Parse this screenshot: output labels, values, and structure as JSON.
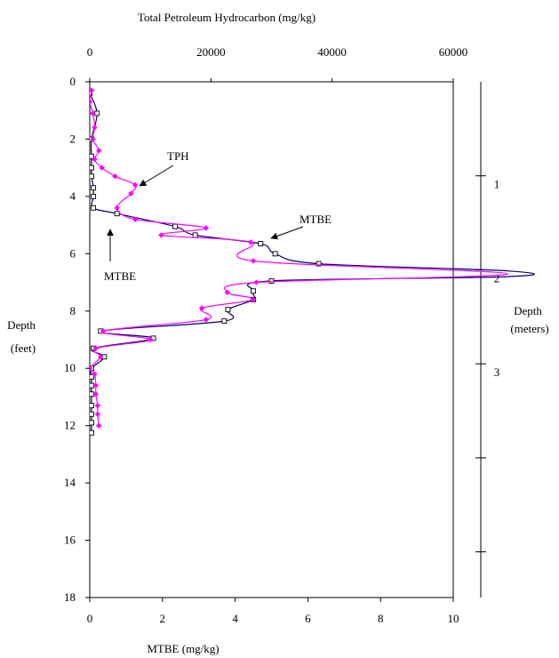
{
  "chart_data": {
    "type": "line",
    "title": "",
    "y_axis": {
      "label": "Depth",
      "unit": "(feet)",
      "range": [
        18,
        0
      ],
      "inverted": true,
      "ticks": [
        0,
        2,
        4,
        6,
        8,
        10,
        12,
        14,
        16,
        18
      ]
    },
    "x_axis_bottom": {
      "label": "MTBE (mg/kg)",
      "range": [
        0,
        10
      ],
      "ticks": [
        0,
        2,
        4,
        6,
        8,
        10
      ]
    },
    "x_axis_top": {
      "label": "Total Petroleum Hydrocarbon (mg/kg)",
      "range": [
        0,
        60000
      ],
      "ticks": [
        "0",
        "20000",
        "40000",
        "60000"
      ],
      "tick_values": [
        0,
        20000,
        40000,
        60000
      ]
    },
    "y_axis_right": {
      "label": "Depth",
      "unit": "(meters)",
      "ticks": [
        1,
        2,
        3,
        4,
        5
      ],
      "tick_labels": [
        "1",
        "2",
        "3",
        "",
        ""
      ],
      "feet_per_meter": 3.281
    },
    "grid": false,
    "legend": "none",
    "series": [
      {
        "name": "MTBE",
        "axis": "bottom",
        "color": "#000066",
        "marker": "open-square",
        "points": [
          [
            0.0,
            0.4
          ],
          [
            0.2,
            1.1
          ],
          [
            0.05,
            2.0
          ],
          [
            0.05,
            2.6
          ],
          [
            0.05,
            3.0
          ],
          [
            0.05,
            3.3
          ],
          [
            0.1,
            3.7
          ],
          [
            0.1,
            4.0
          ],
          [
            0.1,
            4.4
          ],
          [
            0.75,
            4.6
          ],
          [
            2.35,
            5.05
          ],
          [
            2.9,
            5.35
          ],
          [
            4.7,
            5.65
          ],
          [
            5.1,
            6.0
          ],
          [
            6.3,
            6.35
          ],
          [
            11.5,
            6.6
          ],
          [
            11.5,
            6.8
          ],
          [
            5.0,
            6.95
          ],
          [
            4.5,
            7.3
          ],
          [
            4.5,
            7.6
          ],
          [
            3.8,
            7.95
          ],
          [
            3.7,
            8.35
          ],
          [
            0.3,
            8.7
          ],
          [
            1.75,
            8.95
          ],
          [
            0.1,
            9.3
          ],
          [
            0.4,
            9.6
          ],
          [
            0.05,
            10.0
          ],
          [
            0.05,
            10.3
          ],
          [
            0.05,
            10.6
          ],
          [
            0.05,
            10.9
          ],
          [
            0.05,
            11.3
          ],
          [
            0.05,
            11.6
          ],
          [
            0.05,
            11.9
          ],
          [
            0.05,
            12.25
          ]
        ]
      },
      {
        "name": "TPH",
        "axis": "top",
        "color": "#ff00ff",
        "marker": "diamond",
        "points": [
          [
            300,
            0.3
          ],
          [
            0,
            0.7
          ],
          [
            500,
            1.1
          ],
          [
            800,
            1.6
          ],
          [
            500,
            2.0
          ],
          [
            1500,
            2.4
          ],
          [
            800,
            2.7
          ],
          [
            2000,
            3.0
          ],
          [
            4200,
            3.3
          ],
          [
            7500,
            3.6
          ],
          [
            6800,
            3.9
          ],
          [
            4500,
            4.4
          ],
          [
            7500,
            4.8
          ],
          [
            19200,
            5.1
          ],
          [
            11800,
            5.35
          ],
          [
            26600,
            5.6
          ],
          [
            27000,
            6.25
          ],
          [
            69000,
            6.7
          ],
          [
            27500,
            7.0
          ],
          [
            22700,
            7.35
          ],
          [
            27000,
            7.6
          ],
          [
            18500,
            7.9
          ],
          [
            19200,
            8.3
          ],
          [
            2200,
            8.7
          ],
          [
            10000,
            9.0
          ],
          [
            1000,
            9.3
          ],
          [
            1800,
            9.6
          ],
          [
            0,
            10.0
          ],
          [
            800,
            10.2
          ],
          [
            1000,
            10.6
          ],
          [
            1000,
            10.9
          ],
          [
            1300,
            11.3
          ],
          [
            1300,
            11.6
          ],
          [
            1500,
            12.0
          ]
        ]
      }
    ],
    "annotations": [
      {
        "text": "TPH",
        "target_series": "TPH",
        "target": [
          7500,
          3.6
        ]
      },
      {
        "text": "MTBE",
        "target_series": "MTBE",
        "target": [
          4.7,
          5.65
        ]
      },
      {
        "text": "MTBE",
        "target_series": "MTBE",
        "target": [
          0.75,
          5.2
        ]
      }
    ]
  }
}
